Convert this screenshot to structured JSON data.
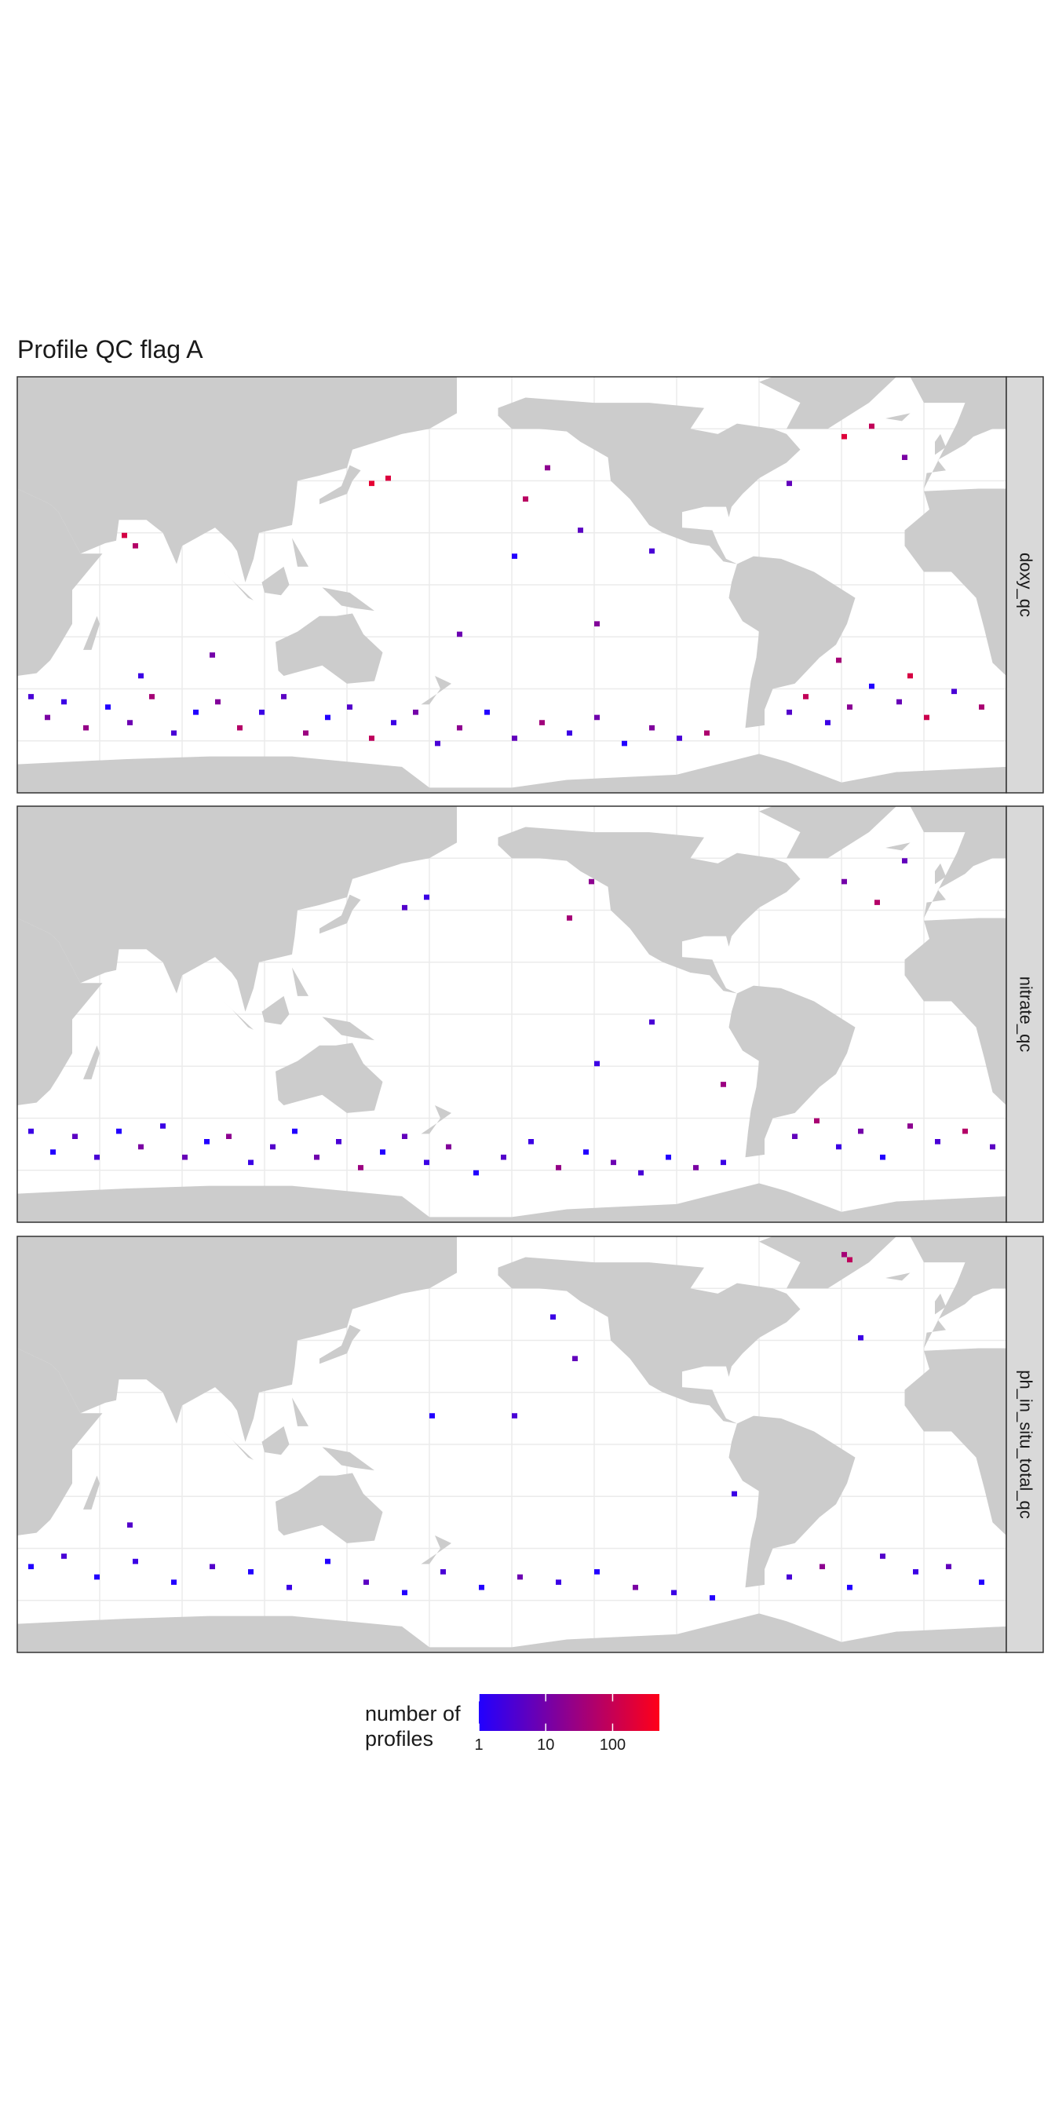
{
  "chart_data": {
    "type": "tile-map",
    "title": "Profile QC flag A",
    "xlim": [
      20,
      380
    ],
    "ylim": [
      -80,
      80
    ],
    "cell": 2,
    "land_color": "#cccccc",
    "colorbar": {
      "title": [
        "number of",
        "profiles"
      ],
      "log": true,
      "lim": [
        1,
        500
      ],
      "ticks": [
        1,
        10,
        100
      ],
      "colors": [
        "#2200ff",
        "#ff0018"
      ]
    },
    "facets": [
      {
        "label": "doxy_qc",
        "lon": [
          24,
          30,
          36,
          44,
          52,
          60,
          68,
          76,
          84,
          92,
          100,
          108,
          116,
          124,
          132,
          140,
          148,
          156,
          164,
          172,
          180,
          190,
          200,
          210,
          220,
          230,
          240,
          250,
          260,
          270,
          300,
          306,
          314,
          322,
          330,
          340,
          350,
          360,
          370,
          58,
          62,
          148,
          154,
          204,
          212,
          224,
          200,
          250,
          320,
          330,
          342,
          300,
          230,
          318,
          180,
          90,
          64,
          344
        ],
        "lat": [
          -44,
          -52,
          -46,
          -56,
          -48,
          -54,
          -44,
          -58,
          -50,
          -46,
          -56,
          -50,
          -44,
          -58,
          -52,
          -48,
          -60,
          -54,
          -50,
          -62,
          -56,
          -50,
          -60,
          -54,
          -58,
          -52,
          -62,
          -56,
          -60,
          -58,
          -50,
          -44,
          -54,
          -48,
          -40,
          -46,
          -52,
          -42,
          -48,
          18,
          14,
          38,
          40,
          32,
          44,
          20,
          10,
          12,
          56,
          60,
          48,
          38,
          -16,
          -30,
          -20,
          -28,
          -36,
          -36
        ],
        "values": [
          3,
          12,
          2,
          25,
          1,
          8,
          40,
          3,
          1,
          15,
          60,
          2,
          5,
          30,
          1,
          4,
          80,
          2,
          10,
          3,
          20,
          1,
          6,
          35,
          2,
          9,
          1,
          14,
          3,
          50,
          4,
          90,
          2,
          18,
          1,
          7,
          120,
          3,
          45,
          150,
          60,
          250,
          180,
          70,
          20,
          5,
          1,
          3,
          200,
          90,
          12,
          6,
          15,
          40,
          8,
          10,
          2,
          160
        ]
      },
      {
        "label": "nitrate_qc",
        "lon": [
          24,
          32,
          40,
          48,
          56,
          64,
          72,
          80,
          88,
          96,
          104,
          112,
          120,
          128,
          136,
          144,
          152,
          160,
          168,
          176,
          186,
          196,
          206,
          216,
          226,
          236,
          246,
          256,
          266,
          276,
          302,
          310,
          318,
          326,
          334,
          344,
          354,
          364,
          374,
          160,
          168,
          220,
          228,
          250,
          230,
          320,
          332,
          342,
          276
        ],
        "lat": [
          -46,
          -54,
          -48,
          -56,
          -46,
          -52,
          -44,
          -56,
          -50,
          -48,
          -58,
          -52,
          -46,
          -56,
          -50,
          -60,
          -54,
          -48,
          -58,
          -52,
          -62,
          -56,
          -50,
          -60,
          -54,
          -58,
          -62,
          -56,
          -60,
          -58,
          -48,
          -42,
          -52,
          -46,
          -56,
          -44,
          -50,
          -46,
          -52,
          40,
          44,
          36,
          50,
          -4,
          -20,
          50,
          42,
          58,
          -28
        ],
        "values": [
          2,
          1,
          5,
          3,
          1,
          12,
          2,
          7,
          1,
          20,
          2,
          4,
          1,
          9,
          3,
          30,
          1,
          6,
          2,
          15,
          1,
          4,
          2,
          25,
          1,
          8,
          3,
          1,
          12,
          2,
          6,
          45,
          2,
          10,
          1,
          20,
          3,
          60,
          5,
          4,
          2,
          40,
          20,
          3,
          2,
          10,
          60,
          6,
          30
        ]
      },
      {
        "label": "ph_in_situ_total_qc",
        "lon": [
          24,
          36,
          48,
          62,
          76,
          90,
          104,
          118,
          132,
          146,
          160,
          174,
          188,
          202,
          216,
          230,
          244,
          258,
          272,
          300,
          312,
          322,
          334,
          346,
          358,
          370,
          222,
          214,
          200,
          170,
          320,
          322,
          326,
          60,
          280
        ],
        "lat": [
          -48,
          -44,
          -52,
          -46,
          -54,
          -48,
          -50,
          -56,
          -46,
          -54,
          -58,
          -50,
          -56,
          -52,
          -54,
          -50,
          -56,
          -58,
          -60,
          -52,
          -48,
          -56,
          -44,
          -50,
          -48,
          -54,
          32,
          48,
          10,
          10,
          72,
          70,
          40,
          -32,
          -20
        ],
        "values": [
          1,
          3,
          1,
          2,
          1,
          4,
          1,
          2,
          1,
          5,
          1,
          3,
          1,
          8,
          2,
          1,
          12,
          2,
          1,
          3,
          20,
          1,
          4,
          2,
          6,
          1,
          6,
          2,
          3,
          1,
          40,
          80,
          2,
          4,
          2
        ]
      }
    ]
  }
}
